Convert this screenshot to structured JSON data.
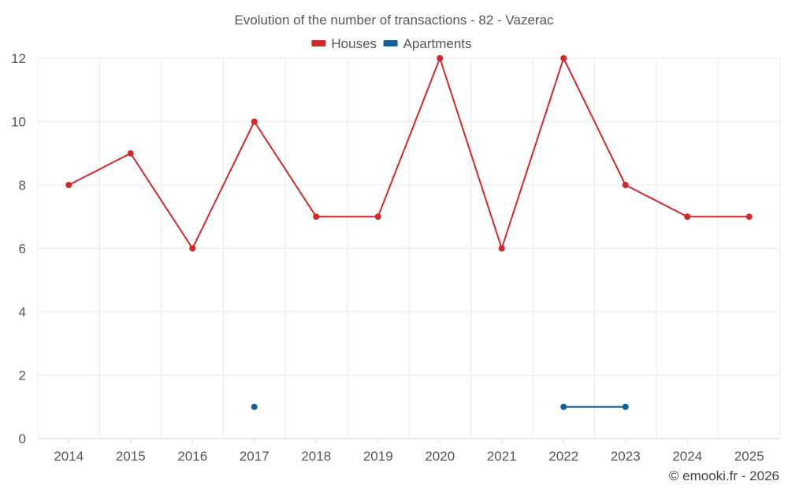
{
  "chart_data": {
    "type": "line",
    "title": "Evolution of the number of transactions - 82 - Vazerac",
    "categories": [
      "2014",
      "2015",
      "2016",
      "2017",
      "2018",
      "2019",
      "2020",
      "2021",
      "2022",
      "2023",
      "2024",
      "2025"
    ],
    "ylim": [
      0,
      12
    ],
    "yticks": [
      0,
      2,
      4,
      6,
      8,
      10,
      12
    ],
    "ytick_labels": [
      "0",
      "2",
      "4",
      "6",
      "8",
      "10",
      "12"
    ],
    "grid": true,
    "legend_position": "top-center",
    "series": [
      {
        "name": "Houses",
        "color": "#d62728",
        "values": [
          8,
          9,
          6,
          10,
          7,
          7,
          12,
          6,
          12,
          8,
          7,
          7
        ]
      },
      {
        "name": "Apartments",
        "color": "#0e6399",
        "values": [
          null,
          null,
          null,
          1,
          null,
          null,
          null,
          null,
          1,
          1,
          null,
          null
        ]
      }
    ],
    "credit": "© emooki.fr - 2026"
  }
}
